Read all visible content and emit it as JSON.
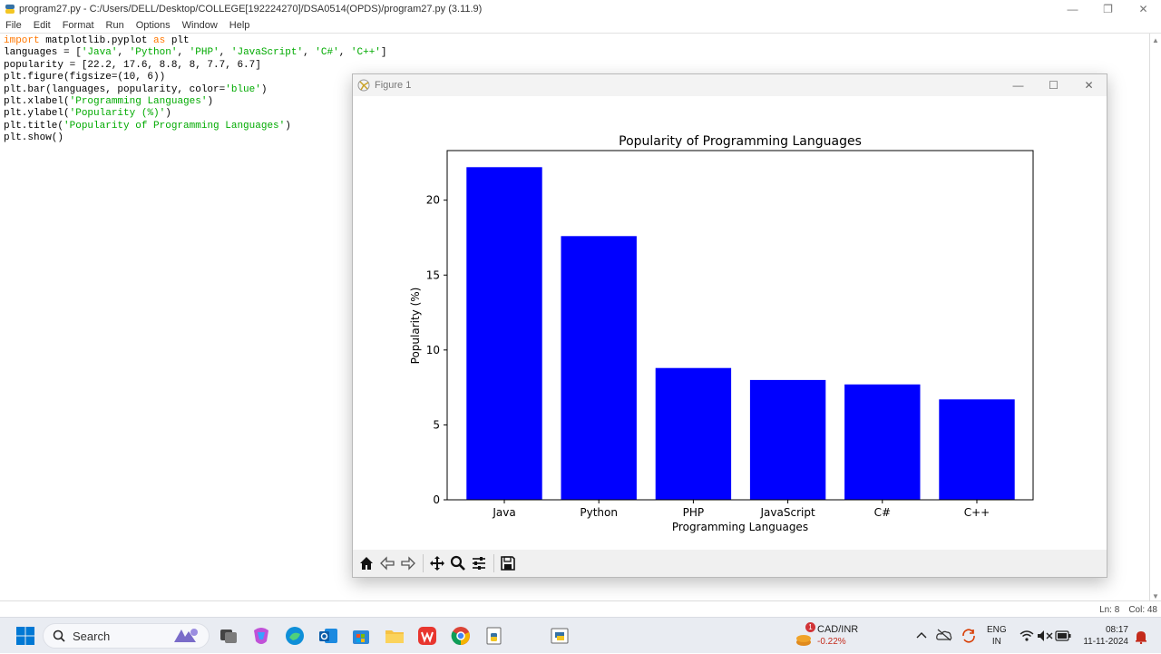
{
  "idle": {
    "title": "program27.py - C:/Users/DELL/Desktop/COLLEGE[192224270]/DSA0514(OPDS)/program27.py (3.11.9)",
    "menu": [
      "File",
      "Edit",
      "Format",
      "Run",
      "Options",
      "Window",
      "Help"
    ],
    "code": {
      "l1_kw": "import",
      "l1_rest": " matplotlib.pyplot ",
      "l1_as": "as",
      "l1_end": " plt",
      "l2_a": "languages = [",
      "l2_s1": "'Java'",
      "l2_s2": "'Python'",
      "l2_s3": "'PHP'",
      "l2_s4": "'JavaScript'",
      "l2_s5": "'C#'",
      "l2_s6": "'C++'",
      "l2_b": "]",
      "l3": "popularity = [22.2, 17.6, 8.8, 8, 7.7, 6.7]",
      "l4": "plt.figure(figsize=(10, 6))",
      "l5_a": "plt.bar(languages, popularity, color=",
      "l5_s": "'blue'",
      "l5_b": ")",
      "l6_a": "plt.xlabel(",
      "l6_s": "'Programming Languages'",
      "l6_b": ")",
      "l7_a": "plt.ylabel(",
      "l7_s": "'Popularity (%)'",
      "l7_b": ")",
      "l8_a": "plt.title(",
      "l8_s": "'Popularity of Programming Languages'",
      "l8_b": ")",
      "l9": "plt.show()"
    },
    "status_ln": "Ln: 8",
    "status_col": "Col: 48"
  },
  "figure": {
    "title": "Figure 1",
    "toolbar": [
      "home-icon",
      "back-icon",
      "forward-icon",
      "pan-icon",
      "zoom-icon",
      "configure-icon",
      "save-icon"
    ]
  },
  "chart_data": {
    "type": "bar",
    "title": "Popularity of Programming Languages",
    "xlabel": "Programming Languages",
    "ylabel": "Popularity (%)",
    "categories": [
      "Java",
      "Python",
      "PHP",
      "JavaScript",
      "C#",
      "C++"
    ],
    "values": [
      22.2,
      17.6,
      8.8,
      8,
      7.7,
      6.7
    ],
    "yticks": [
      0,
      5,
      10,
      15,
      20
    ],
    "ylim": [
      0,
      23.31
    ],
    "color": "#0000ff",
    "grid": false,
    "legend": "none"
  },
  "taskbar": {
    "search": "Search",
    "ticker_pair": "CAD/INR",
    "ticker_change": "-0.22%",
    "ticker_badge": "1",
    "lang_1": "ENG",
    "lang_2": "IN",
    "time": "08:17",
    "date": "11-11-2024"
  }
}
